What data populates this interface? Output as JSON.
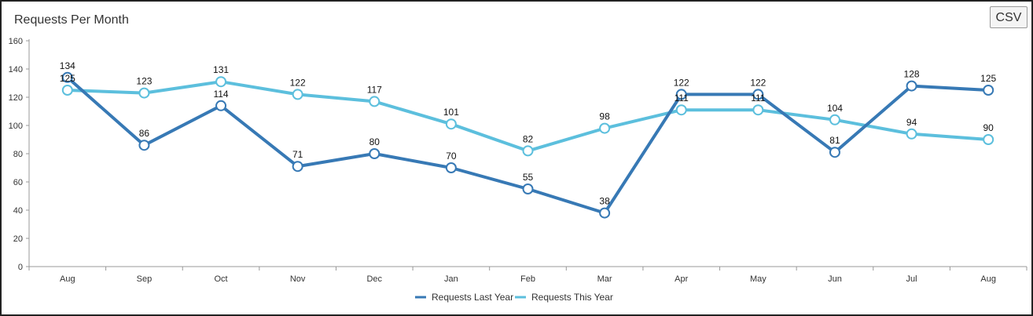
{
  "title": "Requests Per Month",
  "csv_button": "CSV",
  "colors": {
    "last_year": "#3779b5",
    "this_year": "#5cbfdd",
    "axis": "#999999",
    "grid": "#e6e6e6"
  },
  "chart_data": {
    "type": "line",
    "title": "Requests Per Month",
    "xlabel": "",
    "ylabel": "",
    "ylim": [
      0,
      160
    ],
    "yticks": [
      0,
      20,
      40,
      60,
      80,
      100,
      120,
      140,
      160
    ],
    "categories": [
      "Aug",
      "Sep",
      "Oct",
      "Nov",
      "Dec",
      "Jan",
      "Feb",
      "Mar",
      "Apr",
      "May",
      "Jun",
      "Jul",
      "Aug"
    ],
    "series": [
      {
        "name": "Requests Last Year",
        "values": [
          134,
          86,
          114,
          71,
          80,
          70,
          55,
          38,
          122,
          122,
          81,
          128,
          125
        ]
      },
      {
        "name": "Requests This Year",
        "values": [
          125,
          123,
          131,
          122,
          117,
          101,
          82,
          98,
          111,
          111,
          104,
          94,
          90
        ]
      }
    ],
    "legend_position": "bottom-center",
    "grid": false
  }
}
